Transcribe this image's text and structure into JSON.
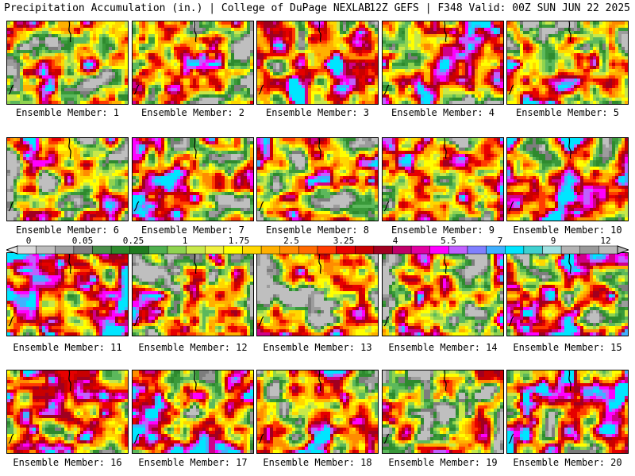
{
  "header": {
    "left_title": "Precipitation Accumulation (in.) | College of DuPage NEXLAB",
    "right_title": "12Z GEFS | F348 Valid: 00Z SUN JUN 22 2025"
  },
  "panel_label_prefix": "Ensemble Member:",
  "panels": [
    {
      "member": "1",
      "palette_bias": 0.35
    },
    {
      "member": "2",
      "palette_bias": 0.3
    },
    {
      "member": "3",
      "palette_bias": 0.55
    },
    {
      "member": "4",
      "palette_bias": 0.45
    },
    {
      "member": "5",
      "palette_bias": 0.4
    },
    {
      "member": "6",
      "palette_bias": 0.3
    },
    {
      "member": "7",
      "palette_bias": 0.5
    },
    {
      "member": "8",
      "palette_bias": 0.42
    },
    {
      "member": "9",
      "palette_bias": 0.4
    },
    {
      "member": "10",
      "palette_bias": 0.52
    },
    {
      "member": "11",
      "palette_bias": 0.55
    },
    {
      "member": "12",
      "palette_bias": 0.4
    },
    {
      "member": "13",
      "palette_bias": 0.35
    },
    {
      "member": "14",
      "palette_bias": 0.38
    },
    {
      "member": "15",
      "palette_bias": 0.55
    },
    {
      "member": "16",
      "palette_bias": 0.5
    },
    {
      "member": "17",
      "palette_bias": 0.55
    },
    {
      "member": "18",
      "palette_bias": 0.45
    },
    {
      "member": "19",
      "palette_bias": 0.4
    },
    {
      "member": "20",
      "palette_bias": 0.58
    }
  ],
  "colorbar": {
    "tick_labels": [
      "0",
      "0.05",
      "0.25",
      "1",
      "1.75",
      "2.5",
      "3.25",
      "4",
      "5.5",
      "7",
      "9",
      "12"
    ],
    "colors": [
      "#d9d9d9",
      "#bdbdbd",
      "#a0a0a0",
      "#7f7f7f",
      "#4b8f4b",
      "#2e8a2e",
      "#1f7a1f",
      "#4fb04f",
      "#8fd34f",
      "#c8e84a",
      "#f0f040",
      "#ffff00",
      "#ffd700",
      "#ffb000",
      "#ff8c00",
      "#ff6a00",
      "#ff3b00",
      "#e60000",
      "#c80000",
      "#a00020",
      "#c0006a",
      "#e000a0",
      "#ff00ff",
      "#c060ff",
      "#7f7fff",
      "#40b0ff",
      "#00e5ff",
      "#40d0d0",
      "#a0e0e0",
      "#b4b4b4",
      "#9a9a9a",
      "#bababa"
    ]
  }
}
